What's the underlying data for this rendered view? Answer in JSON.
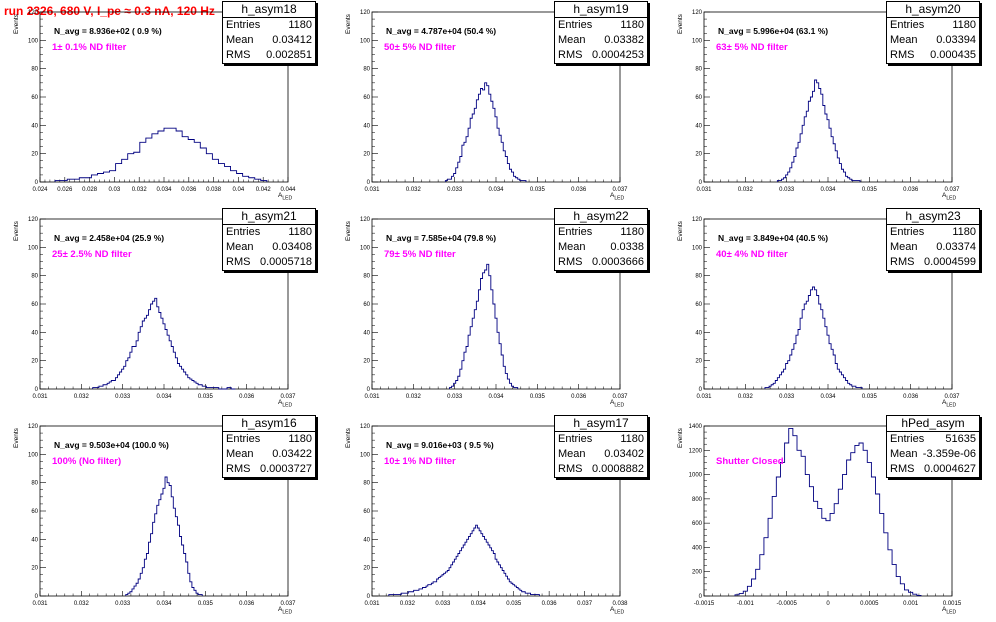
{
  "page_title": "run 2326,   680 V, I_pe ≈ 0.3 nA, 120 Hz",
  "chart_data": [
    {
      "type": "bar",
      "name": "h_asym18",
      "entries": "1180",
      "mean": "0.03412",
      "rms": "0.002851",
      "navg": "N_avg = 8.936e+02 ( 0.9 %)",
      "filter": "1± 0.1% ND filter",
      "xlabel": "A_LED",
      "ylabel": "Events",
      "xlim": [
        0.0235,
        0.044
      ],
      "ylim": [
        0,
        120
      ],
      "xticks": [
        "0.024",
        "0.026",
        "0.028",
        "0.03",
        "0.032",
        "0.034",
        "0.036",
        "0.038",
        "0.04",
        "0.042",
        "0.044"
      ],
      "yticks": [
        "0",
        "20",
        "40",
        "60",
        "80",
        "100",
        "120"
      ],
      "centers": [
        0.025,
        0.0255,
        0.026,
        0.0265,
        0.027,
        0.0275,
        0.028,
        0.0285,
        0.029,
        0.0295,
        0.03,
        0.0305,
        0.031,
        0.0315,
        0.032,
        0.0325,
        0.033,
        0.0335,
        0.034,
        0.0345,
        0.035,
        0.0355,
        0.036,
        0.0365,
        0.037,
        0.0375,
        0.038,
        0.0385,
        0.039,
        0.0395,
        0.04,
        0.0405,
        0.041,
        0.0415,
        0.042
      ],
      "values": [
        1,
        1,
        2,
        2,
        3,
        3,
        5,
        6,
        7,
        8,
        13,
        16,
        20,
        21,
        28,
        31,
        34,
        36,
        38,
        38,
        36,
        32,
        30,
        28,
        24,
        20,
        16,
        13,
        11,
        8,
        6,
        4,
        3,
        2,
        1
      ]
    },
    {
      "type": "bar",
      "name": "h_asym19",
      "entries": "1180",
      "mean": "0.03382",
      "rms": "0.0004253",
      "navg": "N_avg = 4.787e+04 (50.4 %)",
      "filter": "50± 5% ND filter",
      "xlabel": "A_LED",
      "ylabel": "Events",
      "xlim": [
        0.031,
        0.037
      ],
      "ylim": [
        0,
        120
      ],
      "xticks": [
        "0.031",
        "0.032",
        "0.033",
        "0.034",
        "0.035",
        "0.036",
        "0.037"
      ],
      "yticks": [
        "0",
        "20",
        "40",
        "60",
        "80",
        "100",
        "120"
      ],
      "centers": [
        0.0328,
        0.03285,
        0.0329,
        0.03295,
        0.033,
        0.03305,
        0.0331,
        0.03315,
        0.0332,
        0.03325,
        0.0333,
        0.03335,
        0.0334,
        0.03345,
        0.0335,
        0.03355,
        0.0336,
        0.03365,
        0.0337,
        0.03375,
        0.0338,
        0.03385,
        0.0339,
        0.03395,
        0.034,
        0.03405,
        0.0341,
        0.03415,
        0.0342,
        0.03425,
        0.0343,
        0.03435,
        0.0344,
        0.03445,
        0.0345,
        0.03455,
        0.0346,
        0.03465,
        0.0347
      ],
      "values": [
        1,
        2,
        2,
        4,
        6,
        10,
        14,
        18,
        26,
        28,
        32,
        38,
        45,
        48,
        52,
        58,
        62,
        66,
        65,
        70,
        68,
        62,
        57,
        52,
        46,
        38,
        33,
        28,
        22,
        18,
        13,
        9,
        7,
        4,
        3,
        2,
        1,
        1,
        1
      ]
    },
    {
      "type": "bar",
      "name": "h_asym20",
      "entries": "1180",
      "mean": "0.03394",
      "rms": "0.000435",
      "navg": "N_avg = 5.996e+04 (63.1 %)",
      "filter": "63± 5% ND filter",
      "xlabel": "A_LED",
      "ylabel": "Events",
      "xlim": [
        0.031,
        0.037
      ],
      "ylim": [
        0,
        120
      ],
      "xticks": [
        "0.031",
        "0.032",
        "0.033",
        "0.034",
        "0.035",
        "0.036",
        "0.037"
      ],
      "yticks": [
        "0",
        "20",
        "40",
        "60",
        "80",
        "100",
        "120"
      ],
      "centers": [
        0.0328,
        0.03285,
        0.0329,
        0.03295,
        0.033,
        0.03305,
        0.0331,
        0.03315,
        0.0332,
        0.03325,
        0.0333,
        0.03335,
        0.0334,
        0.03345,
        0.0335,
        0.03355,
        0.0336,
        0.03365,
        0.0337,
        0.03375,
        0.0338,
        0.03385,
        0.0339,
        0.03395,
        0.034,
        0.03405,
        0.0341,
        0.03415,
        0.0342,
        0.03425,
        0.0343,
        0.03435,
        0.0344,
        0.03445,
        0.0345,
        0.03455,
        0.0346,
        0.03465,
        0.0347,
        0.03475
      ],
      "values": [
        1,
        1,
        2,
        3,
        5,
        7,
        10,
        14,
        18,
        24,
        28,
        34,
        40,
        46,
        50,
        57,
        60,
        64,
        72,
        70,
        66,
        62,
        54,
        48,
        44,
        38,
        32,
        27,
        22,
        17,
        13,
        9,
        7,
        4,
        3,
        2,
        1,
        1,
        1,
        1
      ]
    },
    {
      "type": "bar",
      "name": "h_asym21",
      "entries": "1180",
      "mean": "0.03408",
      "rms": "0.0005718",
      "navg": "N_avg = 2.458e+04 (25.9 %)",
      "filter": "25± 2.5% ND filter",
      "xlabel": "A_LED",
      "ylabel": "Events",
      "xlim": [
        0.031,
        0.037
      ],
      "ylim": [
        0,
        120
      ],
      "xticks": [
        "0.031",
        "0.032",
        "0.033",
        "0.034",
        "0.035",
        "0.036",
        "0.037"
      ],
      "yticks": [
        "0",
        "20",
        "40",
        "60",
        "80",
        "100",
        "120"
      ],
      "centers": [
        0.0323,
        0.03235,
        0.0324,
        0.03245,
        0.0325,
        0.03255,
        0.0326,
        0.03265,
        0.0327,
        0.03275,
        0.0328,
        0.03285,
        0.0329,
        0.03295,
        0.033,
        0.03305,
        0.0331,
        0.03315,
        0.0332,
        0.03325,
        0.0333,
        0.03335,
        0.0334,
        0.03345,
        0.0335,
        0.03355,
        0.0336,
        0.03365,
        0.0337,
        0.03375,
        0.0338,
        0.03385,
        0.0339,
        0.03395,
        0.034,
        0.03405,
        0.0341,
        0.03415,
        0.0342,
        0.03425,
        0.0343,
        0.03435,
        0.0344,
        0.03445,
        0.0345,
        0.03455,
        0.0346,
        0.03465,
        0.0347,
        0.03475,
        0.0348,
        0.03485,
        0.0349,
        0.03495,
        0.035,
        0.03505,
        0.0351,
        0.03515,
        0.0352,
        0.03525,
        0.0353,
        0.03535,
        0.0354,
        0.03545,
        0.0355,
        0.03555,
        0.0356,
        0.03565,
        0.0357
      ],
      "values": [
        1,
        1,
        1,
        2,
        2,
        3,
        3,
        4,
        5,
        6,
        6,
        8,
        10,
        12,
        14,
        16,
        20,
        22,
        26,
        30,
        30,
        34,
        40,
        44,
        48,
        50,
        52,
        56,
        60,
        62,
        64,
        58,
        54,
        50,
        46,
        42,
        38,
        34,
        30,
        26,
        22,
        18,
        16,
        14,
        12,
        10,
        8,
        7,
        6,
        5,
        4,
        3,
        3,
        2,
        2,
        1,
        1,
        1,
        1,
        1,
        1,
        0,
        0,
        0,
        0,
        1,
        1,
        0,
        0
      ]
    },
    {
      "type": "bar",
      "name": "h_asym22",
      "entries": "1180",
      "mean": "0.0338",
      "rms": "0.0003666",
      "navg": "N_avg = 7.585e+04 (79.8 %)",
      "filter": "79± 5% ND filter",
      "xlabel": "A_LED",
      "ylabel": "Events",
      "xlim": [
        0.031,
        0.037
      ],
      "ylim": [
        0,
        120
      ],
      "xticks": [
        "0.031",
        "0.032",
        "0.033",
        "0.034",
        "0.035",
        "0.036",
        "0.037"
      ],
      "yticks": [
        "0",
        "20",
        "40",
        "60",
        "80",
        "100",
        "120"
      ],
      "centers": [
        0.0329,
        0.03295,
        0.033,
        0.03305,
        0.0331,
        0.03315,
        0.0332,
        0.03325,
        0.0333,
        0.03335,
        0.0334,
        0.03345,
        0.0335,
        0.03355,
        0.0336,
        0.03365,
        0.0337,
        0.03375,
        0.0338,
        0.03385,
        0.0339,
        0.03395,
        0.034,
        0.03405,
        0.0341,
        0.03415,
        0.0342,
        0.03425,
        0.0343,
        0.03435,
        0.0344,
        0.03445,
        0.0345
      ],
      "values": [
        1,
        2,
        4,
        6,
        9,
        14,
        20,
        26,
        30,
        38,
        44,
        50,
        56,
        62,
        70,
        78,
        82,
        84,
        88,
        80,
        70,
        60,
        50,
        40,
        32,
        24,
        16,
        11,
        7,
        4,
        2,
        1,
        1
      ]
    },
    {
      "type": "bar",
      "name": "h_asym23",
      "entries": "1180",
      "mean": "0.03374",
      "rms": "0.0004599",
      "navg": "N_avg = 3.849e+04 (40.5 %)",
      "filter": "40± 4% ND filter",
      "xlabel": "A_LED",
      "ylabel": "Events",
      "xlim": [
        0.031,
        0.037
      ],
      "ylim": [
        0,
        120
      ],
      "xticks": [
        "0.031",
        "0.032",
        "0.033",
        "0.034",
        "0.035",
        "0.036",
        "0.037"
      ],
      "yticks": [
        "0",
        "20",
        "40",
        "60",
        "80",
        "100",
        "120"
      ],
      "centers": [
        0.0325,
        0.03255,
        0.0326,
        0.03265,
        0.0327,
        0.03275,
        0.0328,
        0.03285,
        0.0329,
        0.03295,
        0.033,
        0.03305,
        0.0331,
        0.03315,
        0.0332,
        0.03325,
        0.0333,
        0.03335,
        0.0334,
        0.03345,
        0.0335,
        0.03355,
        0.0336,
        0.03365,
        0.0337,
        0.03375,
        0.0338,
        0.03385,
        0.0339,
        0.03395,
        0.034,
        0.03405,
        0.0341,
        0.03415,
        0.0342,
        0.03425,
        0.0343,
        0.03435,
        0.0344,
        0.03445,
        0.0345,
        0.03455,
        0.0346,
        0.03465,
        0.0347,
        0.03475,
        0.0348
      ],
      "values": [
        1,
        1,
        2,
        3,
        4,
        6,
        8,
        10,
        12,
        14,
        18,
        20,
        24,
        28,
        32,
        38,
        42,
        50,
        56,
        60,
        62,
        66,
        70,
        72,
        70,
        66,
        60,
        56,
        50,
        44,
        38,
        32,
        28,
        24,
        18,
        14,
        12,
        10,
        8,
        6,
        4,
        3,
        2,
        2,
        1,
        1,
        1
      ]
    },
    {
      "type": "bar",
      "name": "h_asym16",
      "entries": "1180",
      "mean": "0.03422",
      "rms": "0.0003727",
      "navg": "N_avg = 9.503e+04 (100.0 %)",
      "filter": "100% (No filter)",
      "xlabel": "A_LED",
      "ylabel": "Events",
      "xlim": [
        0.031,
        0.037
      ],
      "ylim": [
        0,
        120
      ],
      "xticks": [
        "0.031",
        "0.032",
        "0.033",
        "0.034",
        "0.035",
        "0.036",
        "0.037"
      ],
      "yticks": [
        "0",
        "20",
        "40",
        "60",
        "80",
        "100",
        "120"
      ],
      "centers": [
        0.0331,
        0.03315,
        0.0332,
        0.03325,
        0.0333,
        0.03335,
        0.0334,
        0.03345,
        0.0335,
        0.03355,
        0.0336,
        0.03365,
        0.0337,
        0.03375,
        0.0338,
        0.03385,
        0.0339,
        0.03395,
        0.034,
        0.03405,
        0.0341,
        0.03415,
        0.0342,
        0.03425,
        0.0343,
        0.03435,
        0.0344,
        0.03445,
        0.0345,
        0.03455,
        0.0346,
        0.03465,
        0.0347,
        0.03475,
        0.0348,
        0.03485,
        0.0349
      ],
      "values": [
        1,
        2,
        3,
        5,
        7,
        9,
        12,
        16,
        20,
        26,
        30,
        38,
        44,
        52,
        58,
        64,
        68,
        72,
        76,
        84,
        80,
        78,
        70,
        62,
        56,
        50,
        42,
        36,
        30,
        24,
        16,
        10,
        6,
        4,
        2,
        1,
        1
      ]
    },
    {
      "type": "bar",
      "name": "h_asym17",
      "entries": "1180",
      "mean": "0.03402",
      "rms": "0.0008882",
      "navg": "N_avg = 9.016e+03 ( 9.5 %)",
      "filter": "10± 1% ND filter",
      "xlabel": "A_LED",
      "ylabel": "Events",
      "xlim": [
        0.031,
        0.038
      ],
      "ylim": [
        0,
        120
      ],
      "xticks": [
        "0.031",
        "0.032",
        "0.033",
        "0.034",
        "0.035",
        "0.036",
        "0.037",
        "0.038"
      ],
      "yticks": [
        "0",
        "20",
        "40",
        "60",
        "80",
        "100",
        "120"
      ],
      "centers": [
        0.0315,
        0.03155,
        0.0316,
        0.03165,
        0.0317,
        0.03175,
        0.0318,
        0.03185,
        0.0319,
        0.03195,
        0.032,
        0.03205,
        0.0321,
        0.03215,
        0.0322,
        0.03225,
        0.0323,
        0.03235,
        0.0324,
        0.03245,
        0.0325,
        0.03255,
        0.0326,
        0.03265,
        0.0327,
        0.03275,
        0.0328,
        0.03285,
        0.0329,
        0.03295,
        0.033,
        0.03305,
        0.0331,
        0.03315,
        0.0332,
        0.03325,
        0.0333,
        0.03335,
        0.0334,
        0.03345,
        0.0335,
        0.03355,
        0.0336,
        0.03365,
        0.0337,
        0.03375,
        0.0338,
        0.03385,
        0.0339,
        0.03395,
        0.034,
        0.03405,
        0.0341,
        0.03415,
        0.0342,
        0.03425,
        0.0343,
        0.03435,
        0.0344,
        0.03445,
        0.0345,
        0.03455,
        0.0346,
        0.03465,
        0.0347,
        0.03475,
        0.0348,
        0.03485,
        0.0349,
        0.03495,
        0.035,
        0.03505,
        0.0351,
        0.03515,
        0.0352,
        0.03525,
        0.0353,
        0.03535,
        0.0354,
        0.03545,
        0.0355,
        0.03555,
        0.0356,
        0.03565,
        0.0357
      ],
      "values": [
        1,
        1,
        1,
        1,
        1,
        1,
        1,
        2,
        2,
        2,
        2,
        3,
        3,
        3,
        4,
        4,
        4,
        5,
        5,
        6,
        6,
        7,
        8,
        8,
        9,
        10,
        10,
        12,
        13,
        14,
        15,
        16,
        17,
        18,
        20,
        22,
        24,
        26,
        28,
        30,
        32,
        34,
        36,
        38,
        40,
        42,
        44,
        46,
        48,
        50,
        48,
        46,
        44,
        42,
        40,
        38,
        36,
        34,
        32,
        30,
        26,
        24,
        22,
        20,
        18,
        16,
        14,
        12,
        10,
        9,
        8,
        7,
        6,
        5,
        4,
        3,
        3,
        2,
        2,
        2,
        1,
        1,
        1,
        1,
        1
      ]
    },
    {
      "type": "bar",
      "name": "hPed_asym",
      "entries": "51635",
      "mean": "-3.359e-06",
      "rms": "0.0004627",
      "navg": "",
      "filter": "Shutter Closed",
      "xlabel": "A_LED",
      "ylabel": "Events",
      "xlim": [
        -0.0015,
        0.0015
      ],
      "ylim": [
        0,
        1400
      ],
      "xticks": [
        "-0.0015",
        "-0.001",
        "-0.0005",
        "0",
        "0.0005",
        "0.001",
        "0.0015"
      ],
      "yticks": [
        "0",
        "200",
        "400",
        "600",
        "800",
        "1000",
        "1200",
        "1400"
      ],
      "centers": [
        -0.0011,
        -0.00105,
        -0.001,
        -0.00095,
        -0.0009,
        -0.00085,
        -0.0008,
        -0.00075,
        -0.0007,
        -0.00065,
        -0.0006,
        -0.00055,
        -0.0005,
        -0.00045,
        -0.0004,
        -0.00035,
        -0.0003,
        -0.00025,
        -0.0002,
        -0.00015,
        -0.0001,
        -5e-05,
        0,
        5e-05,
        0.0001,
        0.00015,
        0.0002,
        0.00025,
        0.0003,
        0.00035,
        0.0004,
        0.00045,
        0.0005,
        0.00055,
        0.0006,
        0.00065,
        0.0007,
        0.00075,
        0.0008,
        0.00085,
        0.0009,
        0.00095,
        0.001,
        0.00105,
        0.0011
      ],
      "values": [
        10,
        20,
        40,
        80,
        140,
        220,
        340,
        480,
        640,
        820,
        980,
        1100,
        1260,
        1380,
        1320,
        1200,
        1150,
        1000,
        900,
        780,
        720,
        640,
        620,
        680,
        760,
        880,
        1000,
        1120,
        1180,
        1240,
        1260,
        1200,
        1100,
        980,
        840,
        680,
        520,
        380,
        260,
        160,
        100,
        50,
        30,
        15,
        5
      ]
    }
  ]
}
